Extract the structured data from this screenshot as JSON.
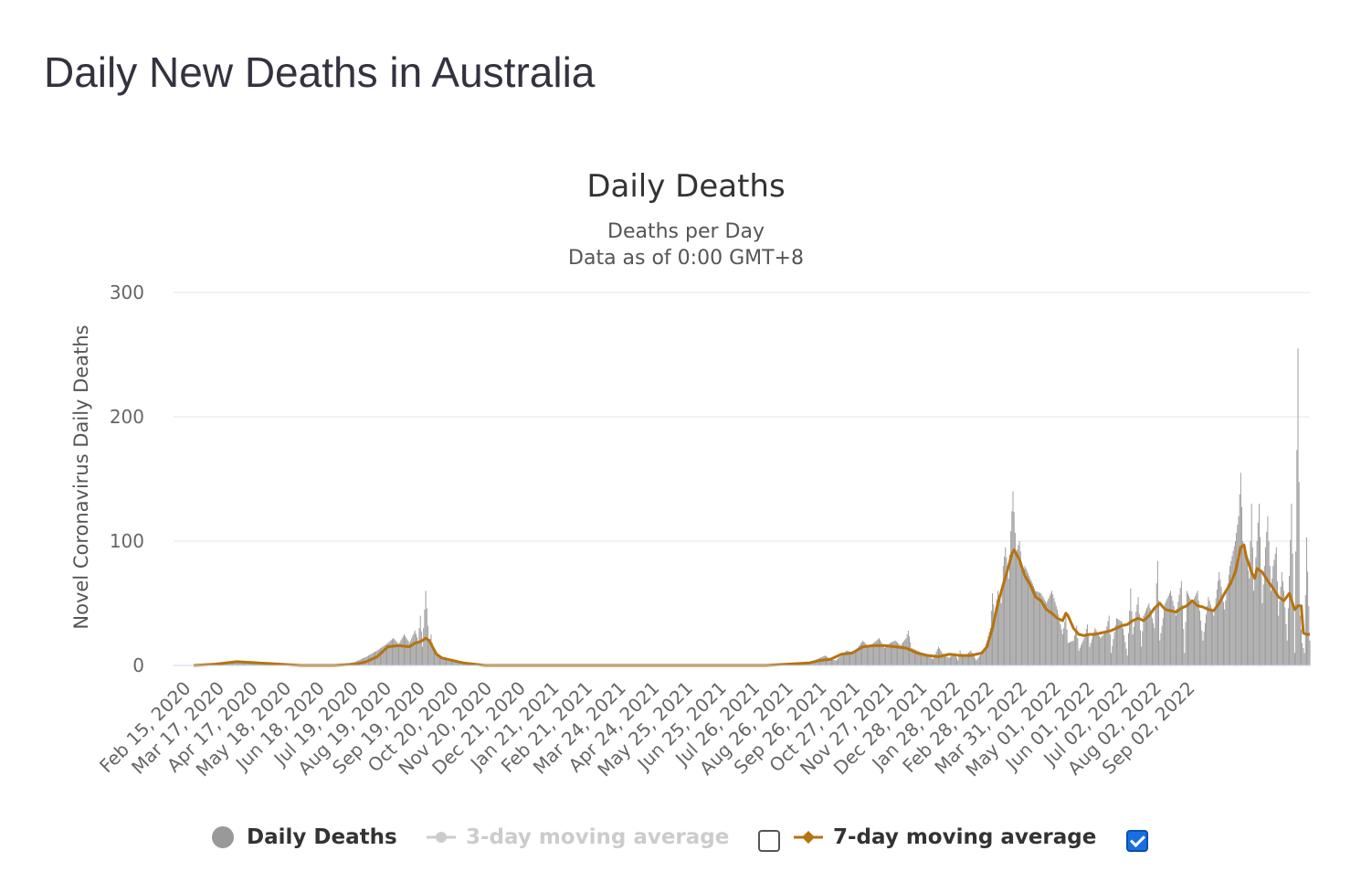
{
  "page": {
    "title": "Daily New Deaths in Australia"
  },
  "chart_data": {
    "type": "bar",
    "title": "Daily Deaths",
    "subtitle": "Deaths per Day",
    "subtitle2": "Data as of 0:00 GMT+8",
    "ylabel": "Novel Coronavirus Daily Deaths",
    "xlabel": "",
    "ylim": [
      0,
      300
    ],
    "yticks": [
      0,
      100,
      200,
      300
    ],
    "grid": true,
    "x_range": [
      "Feb 15, 2020",
      "Sep 30, 2022"
    ],
    "xticks": [
      "Feb 15, 2020",
      "Mar 17, 2020",
      "Apr 17, 2020",
      "May 18, 2020",
      "Jun 18, 2020",
      "Jul 19, 2020",
      "Aug 19, 2020",
      "Sep 19, 2020",
      "Oct 20, 2020",
      "Nov 20, 2020",
      "Dec 21, 2020",
      "Jan 21, 2021",
      "Feb 21, 2021",
      "Mar 24, 2021",
      "Apr 24, 2021",
      "May 25, 2021",
      "Jun 25, 2021",
      "Jul 26, 2021",
      "Aug 26, 2021",
      "Sep 26, 2021",
      "Oct 27, 2021",
      "Nov 27, 2021",
      "Dec 28, 2021",
      "Jan 28, 2022",
      "Feb 28, 2022",
      "Mar 31, 2022",
      "May 01, 2022",
      "Jun 01, 2022",
      "Jul 02, 2022",
      "Aug 02, 2022",
      "Sep 02, 2022"
    ],
    "series": [
      {
        "name": "Daily Deaths",
        "kind": "bar",
        "color": "#999999",
        "points": [
          [
            0,
            0
          ],
          [
            10,
            1
          ],
          [
            20,
            2
          ],
          [
            30,
            3
          ],
          [
            40,
            4
          ],
          [
            50,
            3
          ],
          [
            60,
            2
          ],
          [
            70,
            2
          ],
          [
            80,
            1
          ],
          [
            90,
            1
          ],
          [
            100,
            0
          ],
          [
            120,
            0
          ],
          [
            140,
            1
          ],
          [
            150,
            3
          ],
          [
            160,
            7
          ],
          [
            170,
            12
          ],
          [
            175,
            15
          ],
          [
            180,
            18
          ],
          [
            185,
            22
          ],
          [
            190,
            17
          ],
          [
            195,
            25
          ],
          [
            200,
            18
          ],
          [
            205,
            28
          ],
          [
            208,
            20
          ],
          [
            210,
            40
          ],
          [
            212,
            15
          ],
          [
            215,
            60
          ],
          [
            218,
            18
          ],
          [
            220,
            25
          ],
          [
            222,
            12
          ],
          [
            225,
            8
          ],
          [
            230,
            6
          ],
          [
            235,
            5
          ],
          [
            240,
            3
          ],
          [
            245,
            2
          ],
          [
            250,
            1
          ],
          [
            260,
            1
          ],
          [
            270,
            0
          ],
          [
            300,
            0
          ],
          [
            400,
            0
          ],
          [
            500,
            0
          ],
          [
            530,
            0
          ],
          [
            540,
            0
          ],
          [
            550,
            1
          ],
          [
            560,
            1
          ],
          [
            570,
            2
          ],
          [
            575,
            4
          ],
          [
            580,
            6
          ],
          [
            585,
            8
          ],
          [
            590,
            5
          ],
          [
            595,
            4
          ],
          [
            600,
            8
          ],
          [
            605,
            12
          ],
          [
            610,
            10
          ],
          [
            615,
            14
          ],
          [
            620,
            20
          ],
          [
            625,
            15
          ],
          [
            630,
            18
          ],
          [
            635,
            22
          ],
          [
            640,
            14
          ],
          [
            645,
            18
          ],
          [
            650,
            20
          ],
          [
            655,
            16
          ],
          [
            660,
            22
          ],
          [
            662,
            28
          ],
          [
            665,
            14
          ],
          [
            670,
            12
          ],
          [
            675,
            10
          ],
          [
            680,
            8
          ],
          [
            685,
            5
          ],
          [
            690,
            15
          ],
          [
            695,
            8
          ],
          [
            700,
            6
          ],
          [
            705,
            10
          ],
          [
            708,
            4
          ],
          [
            710,
            12
          ],
          [
            712,
            7
          ],
          [
            715,
            8
          ],
          [
            720,
            12
          ],
          [
            725,
            4
          ],
          [
            730,
            10
          ],
          [
            733,
            15
          ],
          [
            735,
            20
          ],
          [
            738,
            30
          ],
          [
            740,
            58
          ],
          [
            742,
            40
          ],
          [
            745,
            60
          ],
          [
            748,
            50
          ],
          [
            750,
            80
          ],
          [
            752,
            95
          ],
          [
            755,
            70
          ],
          [
            757,
            108
          ],
          [
            759,
            140
          ],
          [
            762,
            90
          ],
          [
            765,
            100
          ],
          [
            768,
            75
          ],
          [
            770,
            80
          ],
          [
            775,
            70
          ],
          [
            780,
            60
          ],
          [
            785,
            58
          ],
          [
            790,
            50
          ],
          [
            795,
            60
          ],
          [
            800,
            45
          ],
          [
            805,
            25
          ],
          [
            808,
            40
          ],
          [
            810,
            18
          ],
          [
            815,
            20
          ],
          [
            818,
            32
          ],
          [
            820,
            12
          ],
          [
            825,
            22
          ],
          [
            828,
            33
          ],
          [
            830,
            15
          ],
          [
            835,
            30
          ],
          [
            840,
            22
          ],
          [
            845,
            27
          ],
          [
            848,
            40
          ],
          [
            850,
            10
          ],
          [
            855,
            38
          ],
          [
            860,
            35
          ],
          [
            865,
            8
          ],
          [
            868,
            62
          ],
          [
            870,
            25
          ],
          [
            875,
            55
          ],
          [
            878,
            15
          ],
          [
            880,
            40
          ],
          [
            885,
            50
          ],
          [
            890,
            30
          ],
          [
            893,
            84
          ],
          [
            895,
            20
          ],
          [
            900,
            50
          ],
          [
            905,
            60
          ],
          [
            910,
            40
          ],
          [
            915,
            68
          ],
          [
            918,
            10
          ],
          [
            920,
            60
          ],
          [
            925,
            50
          ],
          [
            930,
            60
          ],
          [
            935,
            20
          ],
          [
            940,
            55
          ],
          [
            945,
            40
          ],
          [
            950,
            75
          ],
          [
            955,
            45
          ],
          [
            960,
            80
          ],
          [
            965,
            100
          ],
          [
            968,
            120
          ],
          [
            970,
            155
          ],
          [
            972,
            100
          ],
          [
            975,
            90
          ],
          [
            978,
            70
          ],
          [
            980,
            130
          ],
          [
            982,
            60
          ],
          [
            985,
            100
          ],
          [
            987,
            130
          ],
          [
            990,
            50
          ],
          [
            993,
            95
          ],
          [
            995,
            120
          ],
          [
            998,
            60
          ],
          [
            1000,
            80
          ],
          [
            1003,
            95
          ],
          [
            1005,
            40
          ],
          [
            1008,
            75
          ],
          [
            1010,
            60
          ],
          [
            1013,
            20
          ],
          [
            1015,
            72
          ],
          [
            1017,
            130
          ],
          [
            1020,
            10
          ],
          [
            1023,
            255
          ],
          [
            1025,
            40
          ],
          [
            1027,
            18
          ],
          [
            1029,
            10
          ],
          [
            1031,
            103
          ],
          [
            1034,
            20
          ]
        ]
      },
      {
        "name": "3-day moving average",
        "kind": "line",
        "visible": false,
        "color": "#cccccc",
        "points": []
      },
      {
        "name": "7-day moving average",
        "kind": "line",
        "visible": true,
        "color": "#b8720f",
        "points": [
          [
            0,
            0
          ],
          [
            20,
            1
          ],
          [
            40,
            3
          ],
          [
            60,
            2
          ],
          [
            80,
            1
          ],
          [
            100,
            0
          ],
          [
            130,
            0
          ],
          [
            150,
            1
          ],
          [
            160,
            3
          ],
          [
            170,
            7
          ],
          [
            175,
            11
          ],
          [
            180,
            15
          ],
          [
            190,
            16
          ],
          [
            200,
            15
          ],
          [
            205,
            18
          ],
          [
            210,
            19
          ],
          [
            215,
            22
          ],
          [
            218,
            20
          ],
          [
            220,
            17
          ],
          [
            225,
            9
          ],
          [
            230,
            6
          ],
          [
            240,
            4
          ],
          [
            250,
            2
          ],
          [
            260,
            1
          ],
          [
            270,
            0
          ],
          [
            400,
            0
          ],
          [
            530,
            0
          ],
          [
            550,
            1
          ],
          [
            570,
            2
          ],
          [
            580,
            4
          ],
          [
            590,
            5
          ],
          [
            600,
            9
          ],
          [
            610,
            10
          ],
          [
            620,
            15
          ],
          [
            630,
            16
          ],
          [
            640,
            16
          ],
          [
            650,
            15
          ],
          [
            660,
            14
          ],
          [
            670,
            10
          ],
          [
            680,
            8
          ],
          [
            690,
            7
          ],
          [
            700,
            9
          ],
          [
            710,
            8
          ],
          [
            720,
            8
          ],
          [
            730,
            10
          ],
          [
            735,
            15
          ],
          [
            740,
            30
          ],
          [
            745,
            50
          ],
          [
            750,
            65
          ],
          [
            755,
            80
          ],
          [
            758,
            90
          ],
          [
            760,
            93
          ],
          [
            765,
            85
          ],
          [
            770,
            72
          ],
          [
            775,
            65
          ],
          [
            780,
            55
          ],
          [
            785,
            52
          ],
          [
            790,
            45
          ],
          [
            795,
            42
          ],
          [
            800,
            38
          ],
          [
            805,
            36
          ],
          [
            808,
            42
          ],
          [
            810,
            40
          ],
          [
            815,
            30
          ],
          [
            820,
            25
          ],
          [
            825,
            24
          ],
          [
            830,
            25
          ],
          [
            835,
            25
          ],
          [
            840,
            26
          ],
          [
            845,
            27
          ],
          [
            850,
            28
          ],
          [
            855,
            30
          ],
          [
            860,
            32
          ],
          [
            865,
            33
          ],
          [
            870,
            36
          ],
          [
            875,
            38
          ],
          [
            880,
            36
          ],
          [
            885,
            40
          ],
          [
            890,
            46
          ],
          [
            895,
            50
          ],
          [
            900,
            45
          ],
          [
            905,
            44
          ],
          [
            910,
            43
          ],
          [
            915,
            46
          ],
          [
            920,
            48
          ],
          [
            925,
            52
          ],
          [
            930,
            48
          ],
          [
            935,
            47
          ],
          [
            940,
            45
          ],
          [
            945,
            44
          ],
          [
            950,
            50
          ],
          [
            955,
            58
          ],
          [
            960,
            65
          ],
          [
            965,
            75
          ],
          [
            970,
            95
          ],
          [
            973,
            97
          ],
          [
            975,
            88
          ],
          [
            980,
            75
          ],
          [
            983,
            70
          ],
          [
            985,
            78
          ],
          [
            990,
            75
          ],
          [
            995,
            68
          ],
          [
            1000,
            62
          ],
          [
            1005,
            55
          ],
          [
            1010,
            52
          ],
          [
            1015,
            58
          ],
          [
            1018,
            50
          ],
          [
            1020,
            45
          ],
          [
            1023,
            48
          ],
          [
            1026,
            48
          ],
          [
            1028,
            26
          ],
          [
            1031,
            25
          ],
          [
            1034,
            25
          ]
        ]
      }
    ],
    "legend": {
      "items": [
        {
          "label": "Daily Deaths",
          "checkbox": null
        },
        {
          "label": "3-day moving average",
          "checkbox": false
        },
        {
          "label": "7-day moving average",
          "checkbox": true
        }
      ],
      "position": "bottom-center"
    }
  }
}
